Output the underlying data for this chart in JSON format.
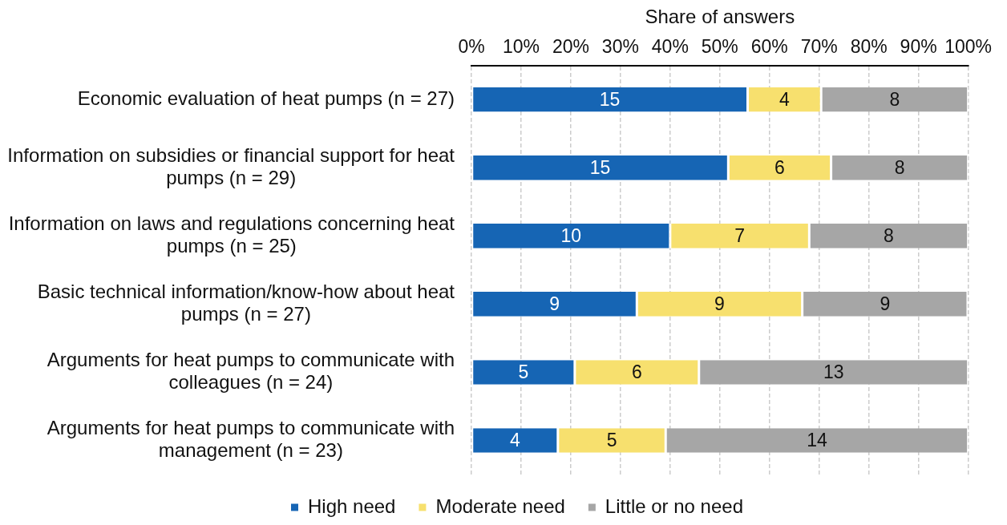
{
  "chart_data": {
    "type": "bar",
    "orientation": "horizontal",
    "stacked": true,
    "xlabel": "Share of answers",
    "categories": [
      "Economic evaluation of heat pumps (n = 27)",
      "Information on subsidies or financial support for heat pumps (n = 29)",
      "Information on laws and regulations concerning heat pumps (n = 25)",
      "Basic technical information/know-how about heat pumps (n = 27)",
      "Arguments for heat pumps to communicate with colleagues (n = 24)",
      "Arguments for heat pumps to communicate with management (n = 23)"
    ],
    "series": [
      {
        "name": "High need",
        "color": "#1665b4",
        "values": [
          55.6,
          51.7,
          40,
          33.3,
          20.8,
          17.4
        ]
      },
      {
        "name": "Moderate need",
        "color": "#f7e06e",
        "values": [
          14.8,
          20.7,
          28,
          33.3,
          25,
          21.7
        ]
      },
      {
        "name": "Little or no need",
        "color": "#a6a6a6",
        "values": [
          29.6,
          27.6,
          32,
          33.3,
          54.2,
          60.9
        ]
      }
    ],
    "annotations": [
      "15",
      "4",
      "8",
      "15",
      "6",
      "8",
      "10",
      "7",
      "8",
      "9",
      "9",
      "9",
      "5",
      "6",
      "13",
      "4",
      "5",
      "14"
    ],
    "xlim": [
      0,
      100
    ],
    "xticks": [
      {
        "value": 0,
        "label": "0%"
      },
      {
        "value": 10,
        "label": "10%"
      },
      {
        "value": 20,
        "label": "20%"
      },
      {
        "value": 30,
        "label": "30%"
      },
      {
        "value": 40,
        "label": "40%"
      },
      {
        "value": 50,
        "label": "50%"
      },
      {
        "value": 60,
        "label": "60%"
      },
      {
        "value": 70,
        "label": "70%"
      },
      {
        "value": 80,
        "label": "80%"
      },
      {
        "value": 90,
        "label": "90%"
      },
      {
        "value": 100,
        "label": "100%"
      }
    ],
    "grid": "x",
    "legend": "bottom"
  }
}
